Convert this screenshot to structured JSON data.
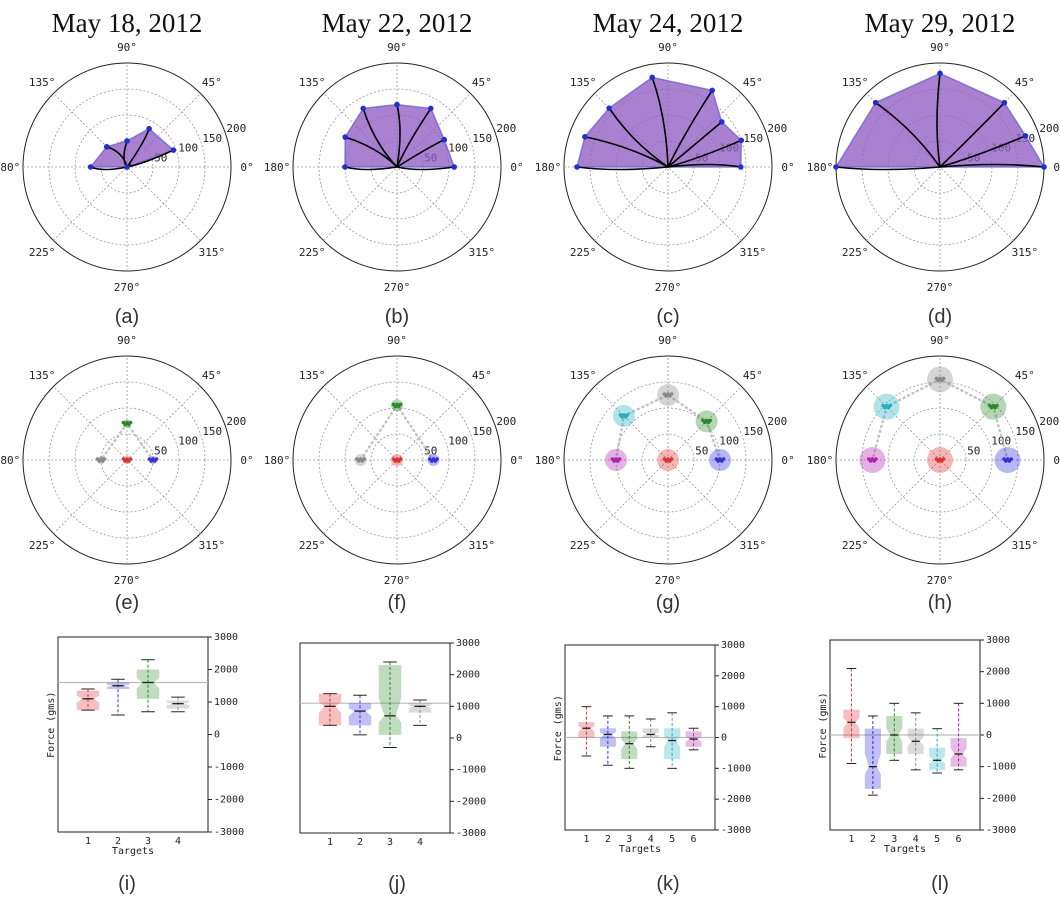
{
  "dates": [
    "May 18, 2012",
    "May 22, 2012",
    "May 24, 2012",
    "May 29, 2012"
  ],
  "captions": [
    "(a)",
    "(b)",
    "(c)",
    "(d)",
    "(e)",
    "(f)",
    "(g)",
    "(h)",
    "(i)",
    "(j)",
    "(k)",
    "(l)"
  ],
  "polar_angle_labels": [
    "0°",
    "45°",
    "90°",
    "135°",
    "180°",
    "225°",
    "270°",
    "315°"
  ],
  "polar_radius_labels": [
    "50",
    "100",
    "150",
    "200"
  ],
  "colors": {
    "red": "#e03030",
    "blue": "#3030e0",
    "green": "#2a8a2a",
    "gray": "#888888",
    "cyan": "#20b0c0",
    "magenta": "#b020b0",
    "hull": "#9a4fb5"
  },
  "chart_data": [
    {
      "type": "polar-area",
      "title": "May 18, 2012",
      "rmax": 200,
      "hull_vertices": [
        [
          180,
          70
        ],
        [
          135,
          55
        ],
        [
          90,
          50
        ],
        [
          60,
          85
        ],
        [
          20,
          95
        ],
        [
          0,
          0
        ]
      ]
    },
    {
      "type": "polar-area",
      "title": "May 22, 2012",
      "rmax": 200,
      "hull_vertices": [
        [
          180,
          100
        ],
        [
          150,
          115
        ],
        [
          120,
          130
        ],
        [
          90,
          120
        ],
        [
          60,
          130
        ],
        [
          30,
          105
        ],
        [
          0,
          110
        ]
      ]
    },
    {
      "type": "polar-area",
      "title": "May 24, 2012",
      "rmax": 200,
      "hull_vertices": [
        [
          180,
          175
        ],
        [
          160,
          170
        ],
        [
          135,
          160
        ],
        [
          100,
          175
        ],
        [
          60,
          170
        ],
        [
          40,
          135
        ],
        [
          20,
          150
        ],
        [
          0,
          140
        ]
      ]
    },
    {
      "type": "polar-area",
      "title": "May 29, 2012",
      "rmax": 200,
      "hull_vertices": [
        [
          180,
          200
        ],
        [
          135,
          175
        ],
        [
          90,
          180
        ],
        [
          45,
          175
        ],
        [
          20,
          175
        ],
        [
          0,
          200
        ]
      ]
    },
    {
      "type": "polar-scatter",
      "rmax": 200,
      "targets": [
        {
          "angle": 0,
          "r": 50,
          "color": "blue"
        },
        {
          "angle": 90,
          "r": 70,
          "color": "green"
        },
        {
          "angle": 180,
          "r": 50,
          "color": "gray"
        },
        {
          "angle": 0,
          "r": 0,
          "color": "red"
        }
      ]
    },
    {
      "type": "polar-scatter",
      "rmax": 200,
      "targets": [
        {
          "angle": 0,
          "r": 70,
          "color": "blue"
        },
        {
          "angle": 90,
          "r": 105,
          "color": "green"
        },
        {
          "angle": 180,
          "r": 70,
          "color": "gray"
        },
        {
          "angle": 0,
          "r": 0,
          "color": "red"
        }
      ]
    },
    {
      "type": "polar-scatter",
      "rmax": 200,
      "targets": [
        {
          "angle": 0,
          "r": 100,
          "color": "blue"
        },
        {
          "angle": 45,
          "r": 105,
          "color": "green"
        },
        {
          "angle": 90,
          "r": 125,
          "color": "gray"
        },
        {
          "angle": 135,
          "r": 120,
          "color": "cyan"
        },
        {
          "angle": 180,
          "r": 100,
          "color": "magenta"
        },
        {
          "angle": 0,
          "r": 0,
          "color": "red"
        }
      ]
    },
    {
      "type": "polar-scatter",
      "rmax": 200,
      "targets": [
        {
          "angle": 0,
          "r": 130,
          "color": "blue"
        },
        {
          "angle": 45,
          "r": 145,
          "color": "green"
        },
        {
          "angle": 90,
          "r": 155,
          "color": "gray"
        },
        {
          "angle": 135,
          "r": 145,
          "color": "cyan"
        },
        {
          "angle": 180,
          "r": 130,
          "color": "magenta"
        },
        {
          "angle": 0,
          "r": 0,
          "color": "red"
        }
      ]
    },
    {
      "type": "boxplot",
      "xlabel": "Targets",
      "ylabel": "Force (gms)",
      "ylim": [
        -3000,
        3000
      ],
      "yticks": [
        -3000,
        -2000,
        -1000,
        0,
        1000,
        2000,
        3000
      ],
      "reference_line": 1600,
      "categories": [
        "1",
        "2",
        "3",
        "4"
      ],
      "boxes": [
        {
          "q1": 750,
          "med": 1100,
          "q3": 1350,
          "lo": 750,
          "hi": 1400,
          "color": "red"
        },
        {
          "q1": 1400,
          "med": 1500,
          "q3": 1600,
          "lo": 600,
          "hi": 1700,
          "color": "blue"
        },
        {
          "q1": 1100,
          "med": 1600,
          "q3": 2000,
          "lo": 700,
          "hi": 2300,
          "color": "green"
        },
        {
          "q1": 800,
          "med": 950,
          "q3": 1050,
          "lo": 700,
          "hi": 1150,
          "color": "gray"
        }
      ]
    },
    {
      "type": "boxplot",
      "xlabel": "",
      "ylabel": "",
      "ylim": [
        -3000,
        3000
      ],
      "yticks": [
        -3000,
        -2000,
        -1000,
        0,
        1000,
        2000,
        3000
      ],
      "reference_line": 1100,
      "categories": [
        "1",
        "2",
        "3",
        "4"
      ],
      "boxes": [
        {
          "q1": 400,
          "med": 1000,
          "q3": 1400,
          "lo": 400,
          "hi": 1400,
          "color": "red"
        },
        {
          "q1": 400,
          "med": 850,
          "q3": 1100,
          "lo": 100,
          "hi": 1350,
          "color": "blue"
        },
        {
          "q1": 100,
          "med": 700,
          "q3": 2300,
          "lo": -300,
          "hi": 2400,
          "color": "green"
        },
        {
          "q1": 800,
          "med": 1000,
          "q3": 1100,
          "lo": 400,
          "hi": 1200,
          "color": "gray"
        }
      ]
    },
    {
      "type": "boxplot",
      "xlabel": "Targets",
      "ylabel": "Force (gms)",
      "ylim": [
        -3000,
        3000
      ],
      "yticks": [
        -3000,
        -2000,
        -1000,
        0,
        1000,
        2000,
        3000
      ],
      "reference_line": 0,
      "categories": [
        "1",
        "2",
        "3",
        "4",
        "5",
        "6"
      ],
      "boxes": [
        {
          "q1": 0,
          "med": 300,
          "q3": 500,
          "lo": -600,
          "hi": 1000,
          "color": "red"
        },
        {
          "q1": -300,
          "med": 100,
          "q3": 300,
          "lo": -900,
          "hi": 700,
          "color": "blue"
        },
        {
          "q1": -700,
          "med": -200,
          "q3": 200,
          "lo": -1000,
          "hi": 700,
          "color": "green"
        },
        {
          "q1": 0,
          "med": 100,
          "q3": 300,
          "lo": -300,
          "hi": 600,
          "color": "gray"
        },
        {
          "q1": -700,
          "med": -100,
          "q3": 300,
          "lo": -1000,
          "hi": 800,
          "color": "cyan"
        },
        {
          "q1": -300,
          "med": -50,
          "q3": 200,
          "lo": -400,
          "hi": 300,
          "color": "magenta"
        }
      ]
    },
    {
      "type": "boxplot",
      "xlabel": "Targets",
      "ylabel": "Force (gms)",
      "ylim": [
        -3000,
        3000
      ],
      "yticks": [
        -3000,
        -2000,
        -1000,
        0,
        1000,
        2000,
        3000
      ],
      "reference_line": 0,
      "categories": [
        "1",
        "2",
        "3",
        "4",
        "5",
        "6"
      ],
      "boxes": [
        {
          "q1": -100,
          "med": 400,
          "q3": 800,
          "lo": -900,
          "hi": 2100,
          "color": "red"
        },
        {
          "q1": -1700,
          "med": -1000,
          "q3": 200,
          "lo": -1900,
          "hi": 600,
          "color": "blue"
        },
        {
          "q1": -600,
          "med": 0,
          "q3": 600,
          "lo": -800,
          "hi": 1000,
          "color": "green"
        },
        {
          "q1": -600,
          "med": -200,
          "q3": 200,
          "lo": -1100,
          "hi": 700,
          "color": "gray"
        },
        {
          "q1": -1100,
          "med": -800,
          "q3": -400,
          "lo": -1200,
          "hi": 200,
          "color": "cyan"
        },
        {
          "q1": -1000,
          "med": -600,
          "q3": -100,
          "lo": -1100,
          "hi": 1000,
          "color": "magenta"
        }
      ]
    }
  ]
}
